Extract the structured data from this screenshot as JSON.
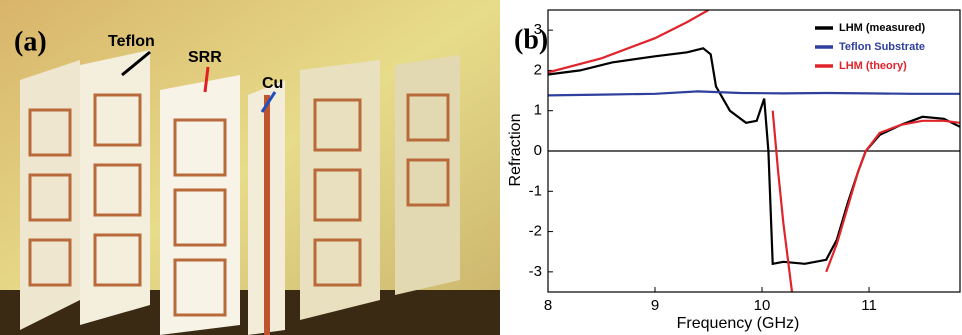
{
  "panels": {
    "a": {
      "label": "(a)",
      "annotations": [
        "Teflon",
        "SRR",
        "Cu"
      ]
    },
    "b": {
      "label": "(b)"
    }
  },
  "chart_data": {
    "type": "line",
    "xlabel": "Frequency (GHz)",
    "ylabel": "Refraction",
    "xlim": [
      8,
      11.85
    ],
    "ylim": [
      -3.5,
      3.5
    ],
    "xticks": [
      8,
      9,
      10,
      11
    ],
    "yticks": [
      -3,
      -2,
      -1,
      0,
      1,
      2,
      3
    ],
    "legend": "upper right",
    "series": [
      {
        "name": "LHM (measured)",
        "color": "#000000",
        "x": [
          8,
          8.3,
          8.6,
          9.0,
          9.3,
          9.45,
          9.52,
          9.57,
          9.7,
          9.85,
          9.95,
          10.02,
          10.06,
          10.1,
          10.2,
          10.4,
          10.6,
          10.7,
          10.8,
          10.9,
          10.97,
          11.1,
          11.3,
          11.5,
          11.7,
          11.85
        ],
        "values": [
          1.9,
          2.0,
          2.2,
          2.35,
          2.45,
          2.55,
          2.4,
          1.6,
          1.0,
          0.7,
          0.75,
          1.3,
          0,
          -2.8,
          -2.75,
          -2.8,
          -2.7,
          -2.2,
          -1.3,
          -0.5,
          0,
          0.4,
          0.65,
          0.85,
          0.8,
          0.6
        ]
      },
      {
        "name": "Teflon Substrate",
        "color": "#2e3f9e",
        "x": [
          8,
          8.5,
          9,
          9.4,
          9.8,
          10.2,
          10.6,
          11,
          11.4,
          11.85
        ],
        "values": [
          1.38,
          1.4,
          1.42,
          1.48,
          1.44,
          1.43,
          1.44,
          1.43,
          1.42,
          1.42
        ]
      },
      {
        "name": "LHM (theory)",
        "color": "#e0242b",
        "x": [
          8,
          8.5,
          9,
          9.3,
          9.5,
          10.04,
          10.1,
          10.15,
          10.2,
          10.28,
          10.5,
          10.6,
          10.7,
          10.8,
          10.9,
          10.97,
          11.1,
          11.3,
          11.5,
          11.7,
          11.85
        ],
        "values": [
          1.95,
          2.3,
          2.8,
          3.2,
          3.5,
          null,
          1.0,
          -0.5,
          -1.8,
          -3.5,
          null,
          -3.0,
          -2.3,
          -1.4,
          -0.5,
          0,
          0.45,
          0.65,
          0.75,
          0.75,
          0.7
        ]
      }
    ]
  }
}
